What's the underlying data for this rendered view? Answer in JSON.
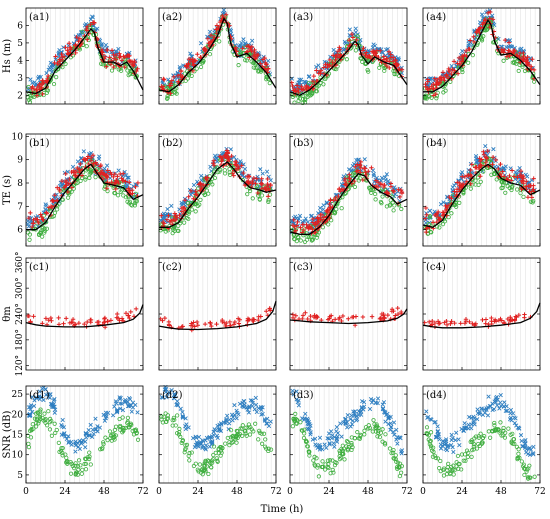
{
  "figure": {
    "x_label": "Time (h)",
    "x_ticks": [
      0,
      24,
      48,
      72
    ],
    "x_range": [
      0,
      72
    ],
    "colors": {
      "model": "#000000",
      "cross": "#2f7fc1",
      "circle": "#3fae3f",
      "plus": "#e02020",
      "grid": "#dcdcdc"
    }
  },
  "chart_data": [
    {
      "type": "scatter",
      "row": "a",
      "y_label": "Hs (m)",
      "y_ticks": [
        "2",
        "3",
        "4",
        "5",
        "6"
      ],
      "y_tick_values": [
        2,
        3,
        4,
        5,
        6
      ],
      "ylim": [
        1.5,
        7
      ],
      "panels": [
        {
          "label": "(a1)",
          "peak_h": 42,
          "model": [
            [
              0,
              2.2
            ],
            [
              6,
              2.1
            ],
            [
              12,
              2.4
            ],
            [
              18,
              3.4
            ],
            [
              24,
              4.0
            ],
            [
              30,
              4.6
            ],
            [
              36,
              5.3
            ],
            [
              40,
              5.8
            ],
            [
              42,
              5.6
            ],
            [
              44,
              4.8
            ],
            [
              48,
              3.9
            ],
            [
              54,
              3.9
            ],
            [
              58,
              3.7
            ],
            [
              62,
              3.9
            ],
            [
              66,
              3.4
            ],
            [
              72,
              2.3
            ]
          ],
          "series": [
            "cross",
            "circle",
            "plus"
          ]
        },
        {
          "label": "(a2)",
          "peak_h": 40,
          "model": [
            [
              0,
              2.3
            ],
            [
              6,
              2.2
            ],
            [
              12,
              2.6
            ],
            [
              18,
              3.3
            ],
            [
              24,
              3.8
            ],
            [
              30,
              4.5
            ],
            [
              36,
              5.4
            ],
            [
              40,
              6.4
            ],
            [
              42,
              6.1
            ],
            [
              44,
              5.0
            ],
            [
              48,
              4.2
            ],
            [
              54,
              4.4
            ],
            [
              60,
              3.9
            ],
            [
              66,
              3.3
            ],
            [
              72,
              2.4
            ]
          ],
          "series": [
            "cross",
            "circle",
            "plus"
          ]
        },
        {
          "label": "(a3)",
          "peak_h": 40,
          "model": [
            [
              0,
              2.2
            ],
            [
              6,
              2.0
            ],
            [
              12,
              2.3
            ],
            [
              18,
              2.8
            ],
            [
              24,
              3.4
            ],
            [
              30,
              4.0
            ],
            [
              36,
              4.6
            ],
            [
              40,
              5.1
            ],
            [
              42,
              4.9
            ],
            [
              44,
              4.3
            ],
            [
              48,
              3.8
            ],
            [
              52,
              4.2
            ],
            [
              58,
              3.9
            ],
            [
              64,
              3.7
            ],
            [
              72,
              2.6
            ]
          ],
          "series": [
            "cross",
            "circle",
            "plus"
          ]
        },
        {
          "label": "(a4)",
          "peak_h": 41,
          "model": [
            [
              0,
              2.2
            ],
            [
              6,
              2.2
            ],
            [
              12,
              2.5
            ],
            [
              18,
              3.1
            ],
            [
              24,
              3.7
            ],
            [
              30,
              4.5
            ],
            [
              36,
              5.6
            ],
            [
              40,
              6.3
            ],
            [
              42,
              6.0
            ],
            [
              44,
              5.1
            ],
            [
              48,
              4.3
            ],
            [
              54,
              4.4
            ],
            [
              60,
              4.0
            ],
            [
              66,
              3.4
            ],
            [
              72,
              2.6
            ]
          ],
          "series": [
            "cross",
            "circle",
            "plus"
          ]
        }
      ]
    },
    {
      "type": "scatter",
      "row": "b",
      "y_label": "TE (s)",
      "y_ticks": [
        "6",
        "7",
        "8",
        "9",
        "10"
      ],
      "y_tick_values": [
        6,
        7,
        8,
        9,
        10
      ],
      "ylim": [
        5.3,
        10.1
      ],
      "panels": [
        {
          "label": "(b1)",
          "peak_h": 40,
          "model": [
            [
              0,
              6.0
            ],
            [
              6,
              6.0
            ],
            [
              12,
              6.3
            ],
            [
              18,
              7.0
            ],
            [
              24,
              7.6
            ],
            [
              30,
              8.1
            ],
            [
              36,
              8.6
            ],
            [
              40,
              8.8
            ],
            [
              44,
              8.4
            ],
            [
              48,
              8.0
            ],
            [
              54,
              7.9
            ],
            [
              60,
              7.8
            ],
            [
              66,
              7.3
            ],
            [
              72,
              7.5
            ]
          ],
          "series": [
            "cross",
            "circle",
            "plus"
          ]
        },
        {
          "label": "(b2)",
          "peak_h": 42,
          "model": [
            [
              0,
              6.1
            ],
            [
              6,
              6.1
            ],
            [
              12,
              6.3
            ],
            [
              18,
              6.9
            ],
            [
              24,
              7.4
            ],
            [
              30,
              8.0
            ],
            [
              36,
              8.6
            ],
            [
              42,
              8.9
            ],
            [
              46,
              8.6
            ],
            [
              50,
              8.2
            ],
            [
              56,
              7.8
            ],
            [
              62,
              7.7
            ],
            [
              66,
              7.6
            ],
            [
              72,
              7.7
            ]
          ],
          "series": [
            "cross",
            "circle",
            "plus"
          ]
        },
        {
          "label": "(b3)",
          "peak_h": 44,
          "model": [
            [
              0,
              5.9
            ],
            [
              6,
              5.8
            ],
            [
              12,
              5.8
            ],
            [
              18,
              6.1
            ],
            [
              24,
              6.6
            ],
            [
              30,
              7.3
            ],
            [
              36,
              7.9
            ],
            [
              42,
              8.4
            ],
            [
              46,
              8.3
            ],
            [
              50,
              7.9
            ],
            [
              56,
              7.6
            ],
            [
              62,
              7.4
            ],
            [
              66,
              7.1
            ],
            [
              72,
              7.3
            ]
          ],
          "series": [
            "cross",
            "circle",
            "plus"
          ]
        },
        {
          "label": "(b4)",
          "peak_h": 40,
          "model": [
            [
              0,
              6.2
            ],
            [
              6,
              6.1
            ],
            [
              12,
              6.4
            ],
            [
              18,
              7.1
            ],
            [
              24,
              7.7
            ],
            [
              30,
              8.2
            ],
            [
              36,
              8.6
            ],
            [
              40,
              8.8
            ],
            [
              44,
              8.6
            ],
            [
              48,
              8.2
            ],
            [
              54,
              8.0
            ],
            [
              60,
              7.9
            ],
            [
              66,
              7.5
            ],
            [
              72,
              7.7
            ]
          ],
          "series": [
            "cross",
            "circle",
            "plus"
          ]
        }
      ]
    },
    {
      "type": "scatter",
      "row": "c",
      "y_label": "θm",
      "y_ticks": [
        "120°",
        "180°",
        "240°",
        "300°",
        "360°"
      ],
      "y_tick_values": [
        120,
        180,
        240,
        300,
        360
      ],
      "ylim": [
        110,
        370
      ],
      "panels": [
        {
          "label": "(c1)",
          "peak_h": 36,
          "model": [
            [
              0,
              220
            ],
            [
              6,
              215
            ],
            [
              12,
              212
            ],
            [
              24,
              210
            ],
            [
              36,
              210
            ],
            [
              48,
              214
            ],
            [
              60,
              220
            ],
            [
              66,
              228
            ],
            [
              70,
              242
            ],
            [
              72,
              262
            ]
          ],
          "series": [
            "plus"
          ]
        },
        {
          "label": "(c2)",
          "peak_h": 36,
          "model": [
            [
              0,
              212
            ],
            [
              6,
              208
            ],
            [
              12,
              205
            ],
            [
              24,
              204
            ],
            [
              36,
              206
            ],
            [
              48,
              210
            ],
            [
              60,
              218
            ],
            [
              66,
              228
            ],
            [
              70,
              246
            ],
            [
              72,
              270
            ]
          ],
          "series": [
            "plus"
          ]
        },
        {
          "label": "(c3)",
          "peak_h": 36,
          "model": [
            [
              0,
              226
            ],
            [
              6,
              224
            ],
            [
              12,
              222
            ],
            [
              24,
              220
            ],
            [
              36,
              218
            ],
            [
              48,
              220
            ],
            [
              60,
              224
            ],
            [
              66,
              230
            ],
            [
              70,
              240
            ],
            [
              72,
              252
            ]
          ],
          "series": [
            "plus"
          ]
        },
        {
          "label": "(c4)",
          "peak_h": 36,
          "model": [
            [
              0,
              214
            ],
            [
              6,
              210
            ],
            [
              12,
              208
            ],
            [
              24,
              208
            ],
            [
              36,
              210
            ],
            [
              48,
              214
            ],
            [
              60,
              220
            ],
            [
              66,
              230
            ],
            [
              70,
              246
            ],
            [
              72,
              266
            ]
          ],
          "series": [
            "plus"
          ]
        }
      ]
    },
    {
      "type": "scatter",
      "row": "d",
      "y_label": "SNR (dB)",
      "y_ticks": [
        "5",
        "10",
        "15",
        "20",
        "25"
      ],
      "y_tick_values": [
        5,
        10,
        15,
        20,
        25
      ],
      "ylim": [
        3,
        27
      ],
      "panels": [
        {
          "label": "(d1)",
          "peak_h": 40,
          "model": [],
          "series": [
            "cross",
            "circle"
          ]
        },
        {
          "label": "(d2)",
          "peak_h": 40,
          "model": [],
          "series": [
            "cross",
            "circle"
          ]
        },
        {
          "label": "(d3)",
          "peak_h": 40,
          "model": [],
          "series": [
            "cross",
            "circle"
          ]
        },
        {
          "label": "(d4)",
          "peak_h": 40,
          "model": [],
          "series": [
            "cross",
            "circle"
          ]
        }
      ]
    }
  ]
}
